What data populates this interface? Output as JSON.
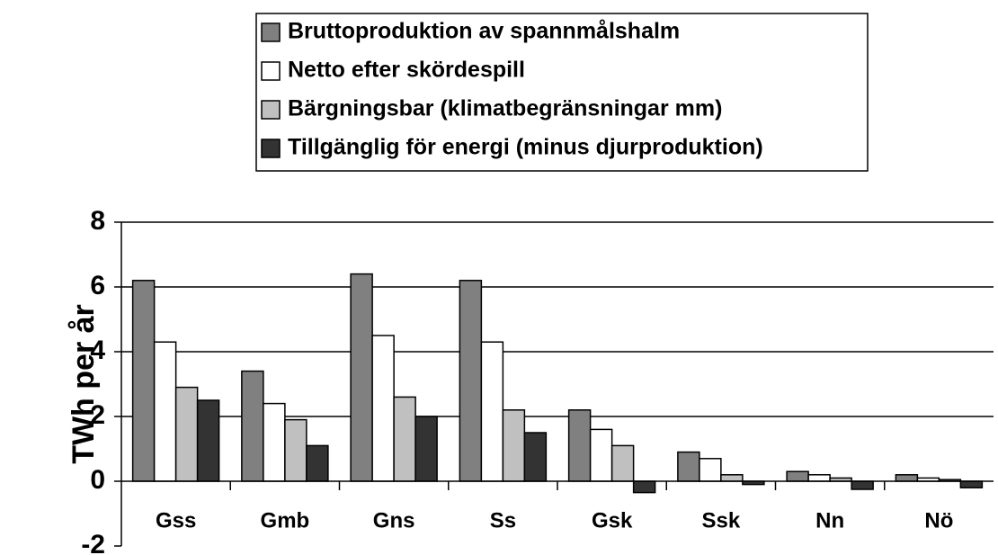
{
  "chart_data": {
    "type": "bar",
    "ylabel": "TWh per år",
    "categories": [
      "Gss",
      "Gmb",
      "Gns",
      "Ss",
      "Gsk",
      "Ssk",
      "Nn",
      "Nö"
    ],
    "series": [
      {
        "name": "Bruttoproduktion av spannmålshalm",
        "color": "#808080",
        "values": [
          6.2,
          3.4,
          6.4,
          6.2,
          2.2,
          0.9,
          0.3,
          0.2
        ]
      },
      {
        "name": "Netto efter skördespill",
        "color": "#ffffff",
        "values": [
          4.3,
          2.4,
          4.5,
          4.3,
          1.6,
          0.7,
          0.2,
          0.1
        ]
      },
      {
        "name": "Bärgningsbar (klimatbegränsningar mm)",
        "color": "#c0c0c0",
        "values": [
          2.9,
          1.9,
          2.6,
          2.2,
          1.1,
          0.2,
          0.1,
          0.05
        ]
      },
      {
        "name": "Tillgänglig för energi (minus djurproduktion)",
        "color": "#333333",
        "values": [
          2.5,
          1.1,
          2.0,
          1.5,
          -0.35,
          -0.1,
          -0.25,
          -0.2
        ]
      }
    ],
    "ylim": [
      -2,
      8
    ],
    "yticks": [
      -2,
      0,
      2,
      4,
      6,
      8
    ],
    "grid": true,
    "legend": "top"
  }
}
